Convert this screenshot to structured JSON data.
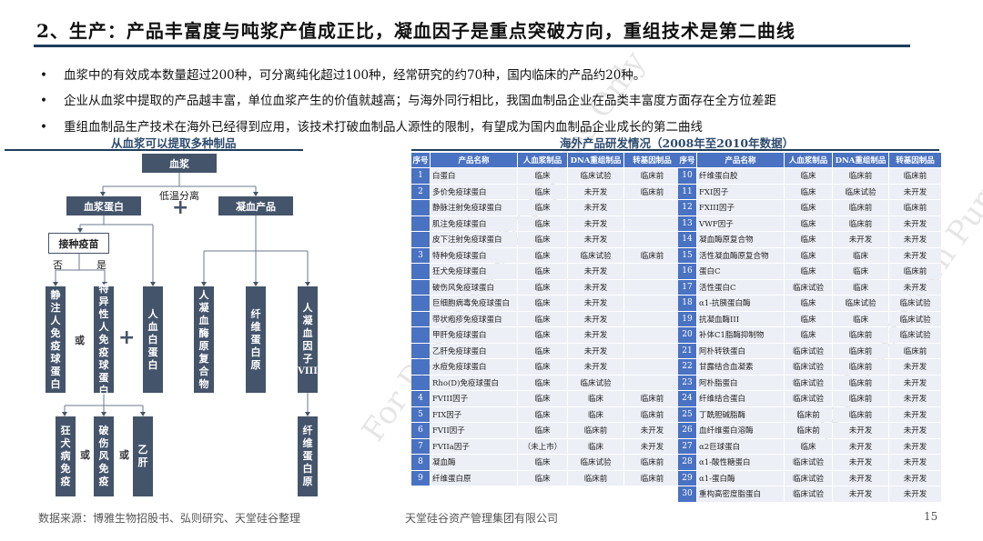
{
  "header": {
    "title": "2、生产：产品丰富度与吨浆产值成正比，凝血因子是重点突破方向，重组技术是第二曲线"
  },
  "bullets": [
    "血浆中的有效成本数量超过200种，可分离纯化超过100种，经常研究的约70种，国内临床的产品约20种。",
    "企业从血浆中提取的产品越丰富，单位血浆产生的价值就越高；与海外同行相比，我国血制品企业在品类丰富度方面存在全方位差距",
    "重组血制品生产技术在海外已经得到应用，该技术打破血制品人源性的限制，有望成为国内血制品企业成长的第二曲线"
  ],
  "bullet_symbol": "•",
  "diagram": {
    "subtitle": "从血浆可以提取多种制品",
    "root": "血浆",
    "separation_label": "低温分离",
    "plasma_protein": "血浆蛋白",
    "coag_products": "凝血产品",
    "vaccination": "接种疫苗",
    "no": "否",
    "yes": "是",
    "or": "或",
    "plus": "+",
    "vertical_boxes": [
      [
        "静",
        "注",
        "人",
        "免",
        "疫",
        "球",
        "蛋",
        "白"
      ],
      [
        "特",
        "异",
        "性",
        "人",
        "免",
        "疫",
        "球",
        "蛋",
        "白"
      ],
      [
        "人",
        "血",
        "白",
        "蛋",
        "白"
      ],
      [
        "人",
        "凝",
        "血",
        "酶",
        "原",
        "复",
        "合",
        "物"
      ],
      [
        "纤",
        "维",
        "蛋",
        "白",
        "原"
      ],
      [
        "人",
        "凝",
        "血",
        "因",
        "子",
        "VIII"
      ]
    ],
    "bottom_boxes": [
      [
        "狂",
        "犬",
        "病",
        "免",
        "疫"
      ],
      [
        "破",
        "伤",
        "风",
        "免",
        "疫"
      ],
      [
        "乙",
        "肝"
      ],
      [
        "纤",
        "维",
        "蛋",
        "白",
        "原"
      ]
    ]
  },
  "table": {
    "subtitle": "海外产品研发情况（2008年至2010年数据）",
    "headers": [
      "序号",
      "产品名称",
      "人血浆制品",
      "DNA重组制品",
      "转基因制品"
    ],
    "left_rows": [
      [
        "1",
        "白蛋白",
        "临床",
        "临床试验",
        "临床前"
      ],
      [
        "2",
        "多价免疫球蛋白",
        "临床",
        "未开发",
        "临床前"
      ],
      [
        "",
        "静脉注射免疫球蛋白",
        "临床",
        "未开发",
        ""
      ],
      [
        "",
        "肌注免疫球蛋白",
        "临床",
        "未开发",
        ""
      ],
      [
        "",
        "皮下注射免疫球蛋白",
        "临床",
        "未开发",
        ""
      ],
      [
        "3",
        "特种免疫球蛋白",
        "临床",
        "临床试验",
        "临床前"
      ],
      [
        "",
        "狂犬免疫球蛋白",
        "临床",
        "未开发",
        ""
      ],
      [
        "",
        "破伤风免疫球蛋白",
        "临床",
        "未开发",
        ""
      ],
      [
        "",
        "巨细胞病毒免疫球蛋白",
        "临床",
        "未开发",
        ""
      ],
      [
        "",
        "带状疱疹免疫球蛋白",
        "临床",
        "未开发",
        ""
      ],
      [
        "",
        "甲肝免疫球蛋白",
        "临床",
        "未开发",
        ""
      ],
      [
        "",
        "乙肝免疫球蛋白",
        "临床",
        "未开发",
        ""
      ],
      [
        "",
        "水痘免疫球蛋白",
        "临床",
        "未开发",
        ""
      ],
      [
        "",
        "Rho(D)免疫球蛋白",
        "临床",
        "临床试验",
        ""
      ],
      [
        "4",
        "FVIII因子",
        "临床",
        "临床",
        "临床前"
      ],
      [
        "5",
        "FIX因子",
        "临床",
        "临床",
        "临床前"
      ],
      [
        "6",
        "FVII因子",
        "临床",
        "临床前",
        "未开发"
      ],
      [
        "7",
        "FVIIa因子",
        "（未上市）",
        "临床",
        "未开发"
      ],
      [
        "8",
        "凝血酶",
        "临床",
        "临床试验",
        "临床前"
      ],
      [
        "9",
        "纤维蛋白原",
        "临床",
        "临床前",
        "临床前"
      ]
    ],
    "right_rows": [
      [
        "10",
        "纤维蛋白胶",
        "临床",
        "临床前",
        "临床前"
      ],
      [
        "11",
        "FXI因子",
        "临床",
        "临床试验",
        "未开发"
      ],
      [
        "12",
        "FXIII因子",
        "临床",
        "临床前",
        "临床前"
      ],
      [
        "13",
        "VWF因子",
        "临床",
        "临床前",
        "未开发"
      ],
      [
        "14",
        "凝血酶原复合物",
        "临床",
        "未开发",
        "未开发"
      ],
      [
        "15",
        "活性凝血酶原复合物",
        "临床",
        "临床",
        "未开发"
      ],
      [
        "16",
        "蛋白C",
        "临床",
        "临床",
        "临床前"
      ],
      [
        "17",
        "活性蛋白C",
        "临床试验",
        "临床",
        "未开发"
      ],
      [
        "18",
        "α1-抗胰蛋白酶",
        "临床",
        "临床试验",
        "临床试验"
      ],
      [
        "19",
        "抗凝血酶III",
        "临床",
        "临床",
        "临床试验"
      ],
      [
        "20",
        "补体C1脂酶抑制物",
        "临床",
        "临床前",
        "临床试验"
      ],
      [
        "21",
        "阿朴转铁蛋白",
        "临床试验",
        "临床前",
        "临床前"
      ],
      [
        "22",
        "甘露结合血凝素",
        "临床试验",
        "临床前",
        "未开发"
      ],
      [
        "23",
        "阿朴脂蛋白",
        "临床试验",
        "临床前",
        "未开发"
      ],
      [
        "24",
        "纤维结合蛋白",
        "临床试验",
        "临床前",
        "未开发"
      ],
      [
        "25",
        "丁酰胆碱脂酶",
        "临床前",
        "临床前",
        "未开发"
      ],
      [
        "26",
        "血纤维蛋白溶酶",
        "临床前",
        "未开发",
        "未开发"
      ],
      [
        "27",
        "α2巨球蛋白",
        "临床",
        "未开发",
        "未开发"
      ],
      [
        "28",
        "α1-酸性糖蛋白",
        "临床试验",
        "未开发",
        "未开发"
      ],
      [
        "29",
        "α1-蛋白酶",
        "临床试验",
        "未开发",
        "未开发"
      ],
      [
        "30",
        "重构高密度脂蛋白",
        "临床试验",
        "未开发",
        "未开发"
      ]
    ]
  },
  "watermark": "For Discussion Purposes Only",
  "footer": {
    "source": "数据来源：博雅生物招股书、弘则研究、天堂硅谷整理",
    "company": "天堂硅谷资产管理集团有限公司",
    "page": "15"
  },
  "colors": {
    "box": "#44546a",
    "table_header": "#4a72c2",
    "rule": "#1f3d5a"
  }
}
